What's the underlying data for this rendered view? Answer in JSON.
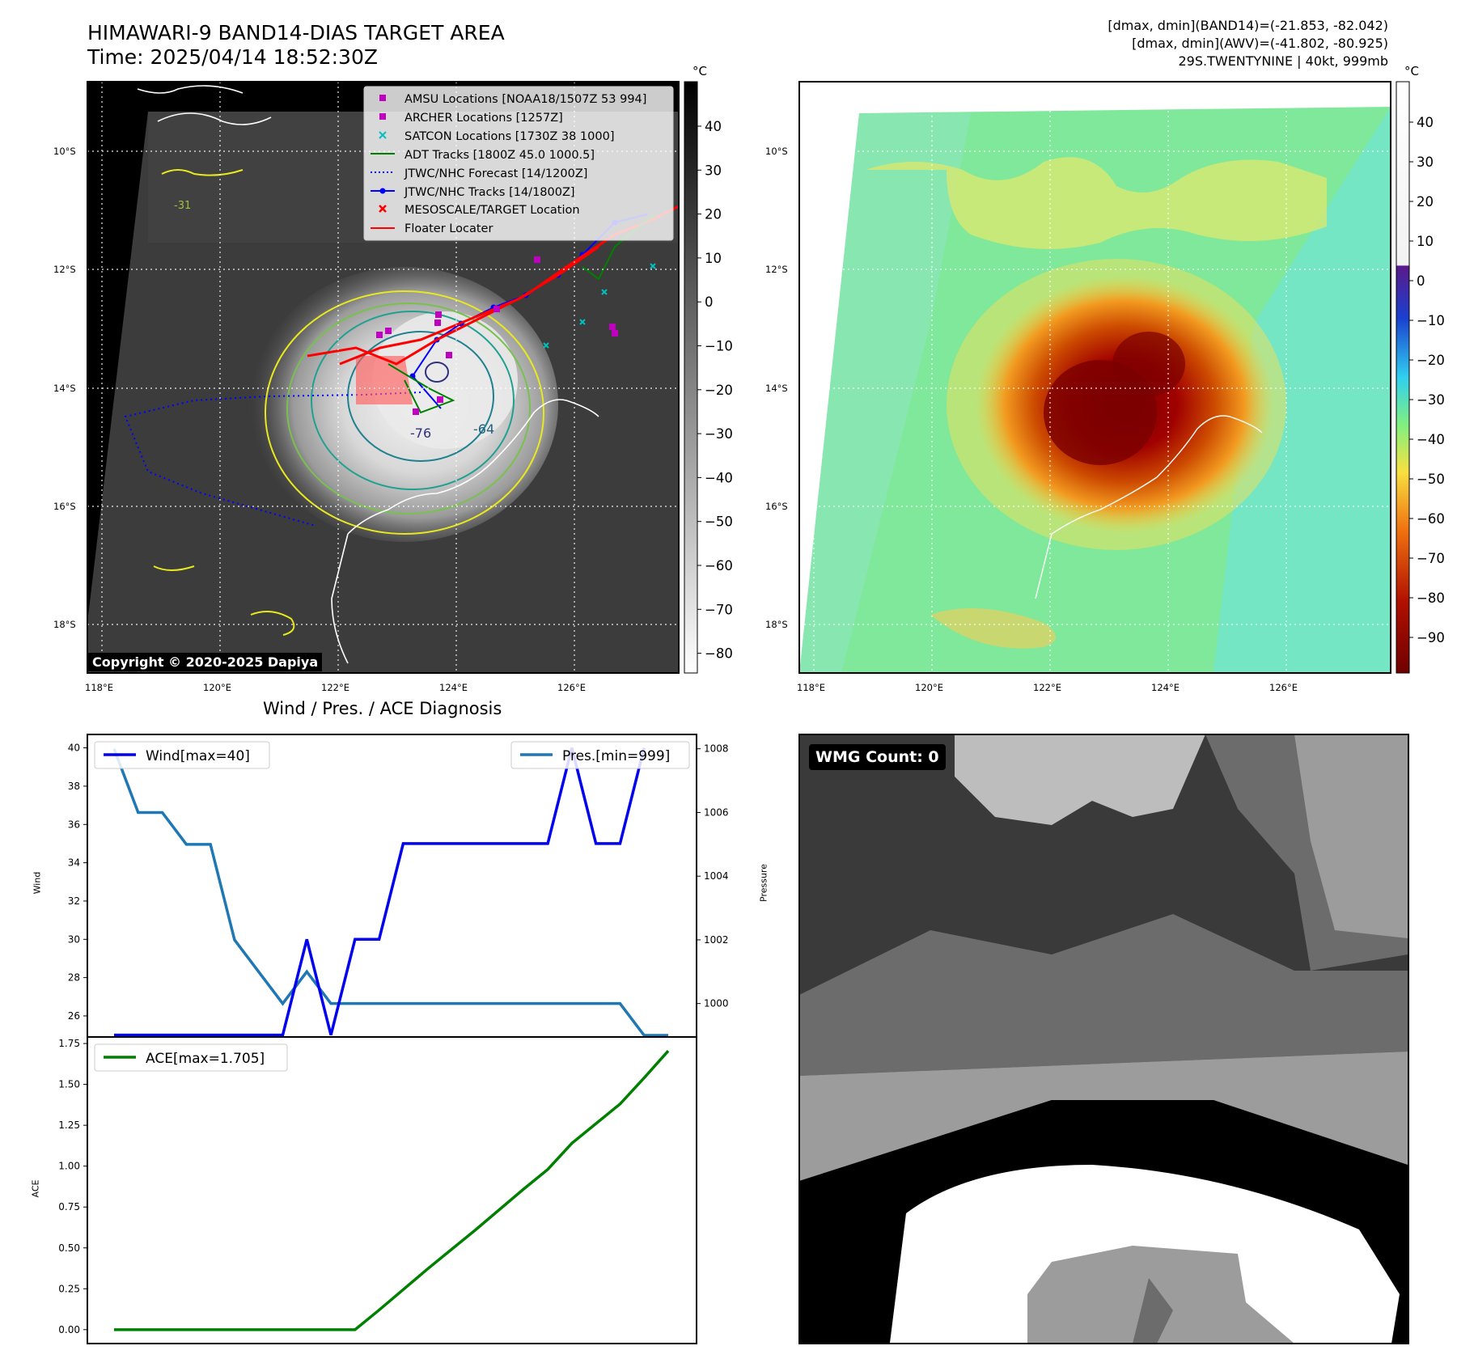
{
  "header": {
    "title_line1": "HIMAWARI-9 BAND14-DIAS TARGET AREA",
    "title_line2": "Time: 2025/04/14 18:52:30Z",
    "right_line1": "[dmax, dmin](BAND14)=(-21.853, -82.042)",
    "right_line2": "[dmax, dmin](AWV)=(-41.802, -80.925)",
    "right_line3": "29S.TWENTYNINE | 40kt, 999mb"
  },
  "copyright": "Copyright © 2020-2025 Dapiya",
  "wmg_label": "WMG Count: 0",
  "diagnosis_title": "Wind / Pres. / ACE Diagnosis",
  "colors": {
    "wind": "#0000ee",
    "pressure": "#1f77b4",
    "ace": "#008000",
    "track_red": "#ff0000",
    "jtwc_blue": "#0000ff",
    "adt_green": "#008000",
    "amsu_magenta": "#c000c0",
    "satcon_cyan": "#00c0c0"
  },
  "maps": {
    "lon_ticks": [
      "118°E",
      "120°E",
      "122°E",
      "124°E",
      "126°E"
    ],
    "lat_ticks": [
      "10°S",
      "12°S",
      "14°S",
      "16°S",
      "18°S"
    ],
    "contour_labels": [
      "-76",
      "-64",
      "-31"
    ],
    "band14_colorbar": {
      "unit": "°C",
      "ticks": [
        "40",
        "30",
        "20",
        "10",
        "0",
        "−10",
        "−20",
        "−30",
        "−40",
        "−50",
        "−60",
        "−70",
        "−80"
      ]
    },
    "awv_colorbar": {
      "unit": "°C",
      "ticks": [
        "40",
        "30",
        "20",
        "10",
        "0",
        "−10",
        "−20",
        "−30",
        "−40",
        "−50",
        "−60",
        "−70",
        "−80",
        "−90"
      ]
    },
    "legend": [
      {
        "label": "AMSU Locations [NOAA18/1507Z 53 994]",
        "marker": "square",
        "color": "#c000c0"
      },
      {
        "label": "ARCHER Locations [1257Z]",
        "marker": "square",
        "color": "#c000c0"
      },
      {
        "label": "SATCON Locations [1730Z 38 1000]",
        "marker": "x",
        "color": "#00c0c0"
      },
      {
        "label": "ADT Tracks [1800Z 45.0 1000.5]",
        "marker": "line",
        "color": "#008000"
      },
      {
        "label": "JTWC/NHC Forecast [14/1200Z]",
        "marker": "dotted",
        "color": "#0000ff"
      },
      {
        "label": "JTWC/NHC Tracks [14/1800Z]",
        "marker": "line-dot",
        "color": "#0000ff"
      },
      {
        "label": "MESOSCALE/TARGET Location",
        "marker": "x",
        "color": "#ff0000"
      },
      {
        "label": "Floater Locater",
        "marker": "line",
        "color": "#ff0000"
      }
    ]
  },
  "chart_data": [
    {
      "type": "line",
      "title": "Wind / Pres. / ACE Diagnosis",
      "x": [
        0,
        1,
        2,
        3,
        4,
        5,
        6,
        7,
        8,
        9,
        10,
        11,
        12,
        13,
        14,
        15,
        16,
        17,
        18,
        19,
        20,
        21,
        22,
        23
      ],
      "series": [
        {
          "name": "Wind[max=40]",
          "axis": "left",
          "values": [
            25,
            25,
            25,
            25,
            25,
            25,
            25,
            25,
            30,
            25,
            30,
            30,
            35,
            35,
            35,
            35,
            35,
            35,
            35,
            40,
            35,
            35,
            40,
            null
          ]
        },
        {
          "name": "Pres.[min=999]",
          "axis": "right",
          "values": [
            1008,
            1006,
            1006,
            1005,
            1005,
            1002,
            1001,
            1000,
            1001,
            1000,
            1000,
            1000,
            1000,
            1000,
            1000,
            1000,
            1000,
            1000,
            1000,
            1000,
            1000,
            1000,
            999,
            999
          ]
        }
      ],
      "ylabel": "Wind",
      "y2label": "Pressure",
      "ylim": [
        24.9,
        40.7
      ],
      "y2lim": [
        998.95,
        1008.45
      ],
      "yticks": [
        26,
        28,
        30,
        32,
        34,
        36,
        38,
        40
      ],
      "y2ticks": [
        1000,
        1002,
        1004,
        1006,
        1008
      ],
      "legend": [
        "top-left",
        "top-right"
      ]
    },
    {
      "type": "line",
      "x": [
        0,
        1,
        2,
        3,
        4,
        5,
        6,
        7,
        8,
        9,
        10,
        11,
        12,
        13,
        14,
        15,
        16,
        17,
        18,
        19,
        20,
        21,
        22,
        23
      ],
      "series": [
        {
          "name": "ACE[max=1.705]",
          "values": [
            0,
            0,
            0,
            0,
            0,
            0,
            0,
            0,
            0,
            0,
            0,
            0.12,
            0.245,
            0.37,
            0.49,
            0.61,
            0.735,
            0.86,
            0.98,
            1.14,
            1.26,
            1.38,
            1.54,
            1.705
          ]
        }
      ],
      "ylabel": "ACE",
      "ylim": [
        -0.085,
        1.79
      ],
      "yticks": [
        0.0,
        0.25,
        0.5,
        0.75,
        1.0,
        1.25,
        1.5,
        1.75
      ],
      "yticklabels": [
        "0.00",
        "0.25",
        "0.50",
        "0.75",
        "1.00",
        "1.25",
        "1.50",
        "1.75"
      ],
      "legend": "top-left"
    }
  ]
}
